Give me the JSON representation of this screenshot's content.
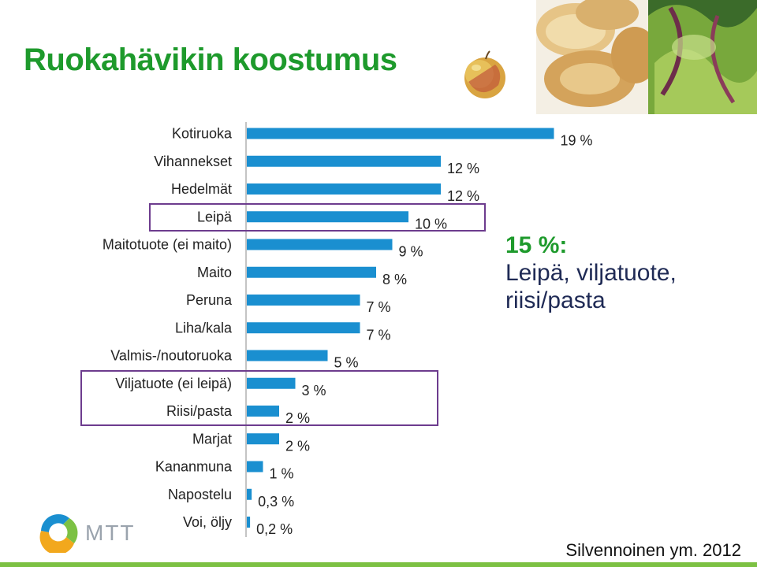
{
  "title": "Ruokahävikin koostumus",
  "callout": {
    "percent": "15 %:",
    "line1": "Leipä, viljatuote,",
    "line2": "riisi/pasta"
  },
  "source": "Silvennoinen ym. 2012",
  "logo_text": "MTT",
  "colors": {
    "bar": "#1a8fd0",
    "title": "#1e9a2c",
    "highlight_box": "#6d3c8e",
    "callout_text": "#1f2a55"
  },
  "icons": [
    "apple-image",
    "bread-image",
    "salad-image",
    "mtt-logo-icon"
  ],
  "chart_data": {
    "type": "bar",
    "orientation": "horizontal",
    "categories": [
      "Kotiruoka",
      "Vihannekset",
      "Hedelmät",
      "Leipä",
      "Maitotuote (ei maito)",
      "Maito",
      "Peruna",
      "Liha/kala",
      "Valmis-/noutoruoka",
      "Viljatuote (ei leipä)",
      "Riisi/pasta",
      "Marjat",
      "Kananmuna",
      "Napostelu",
      "Voi, öljy"
    ],
    "values": [
      19,
      12,
      12,
      10,
      9,
      8,
      7,
      7,
      5,
      3,
      2,
      2,
      1,
      0.3,
      0.2
    ],
    "value_labels": [
      "19 %",
      "12 %",
      "12 %",
      "10 %",
      "9 %",
      "8 %",
      "7 %",
      "7 %",
      "5 %",
      "3 %",
      "2 %",
      "2 %",
      "1 %",
      "0,3 %",
      "0,2 %"
    ],
    "highlighted_groups": [
      [
        "Leipä"
      ],
      [
        "Viljatuote (ei leipä)",
        "Riisi/pasta"
      ]
    ],
    "xlim": [
      0,
      20
    ],
    "grid": false,
    "legend": "none"
  }
}
